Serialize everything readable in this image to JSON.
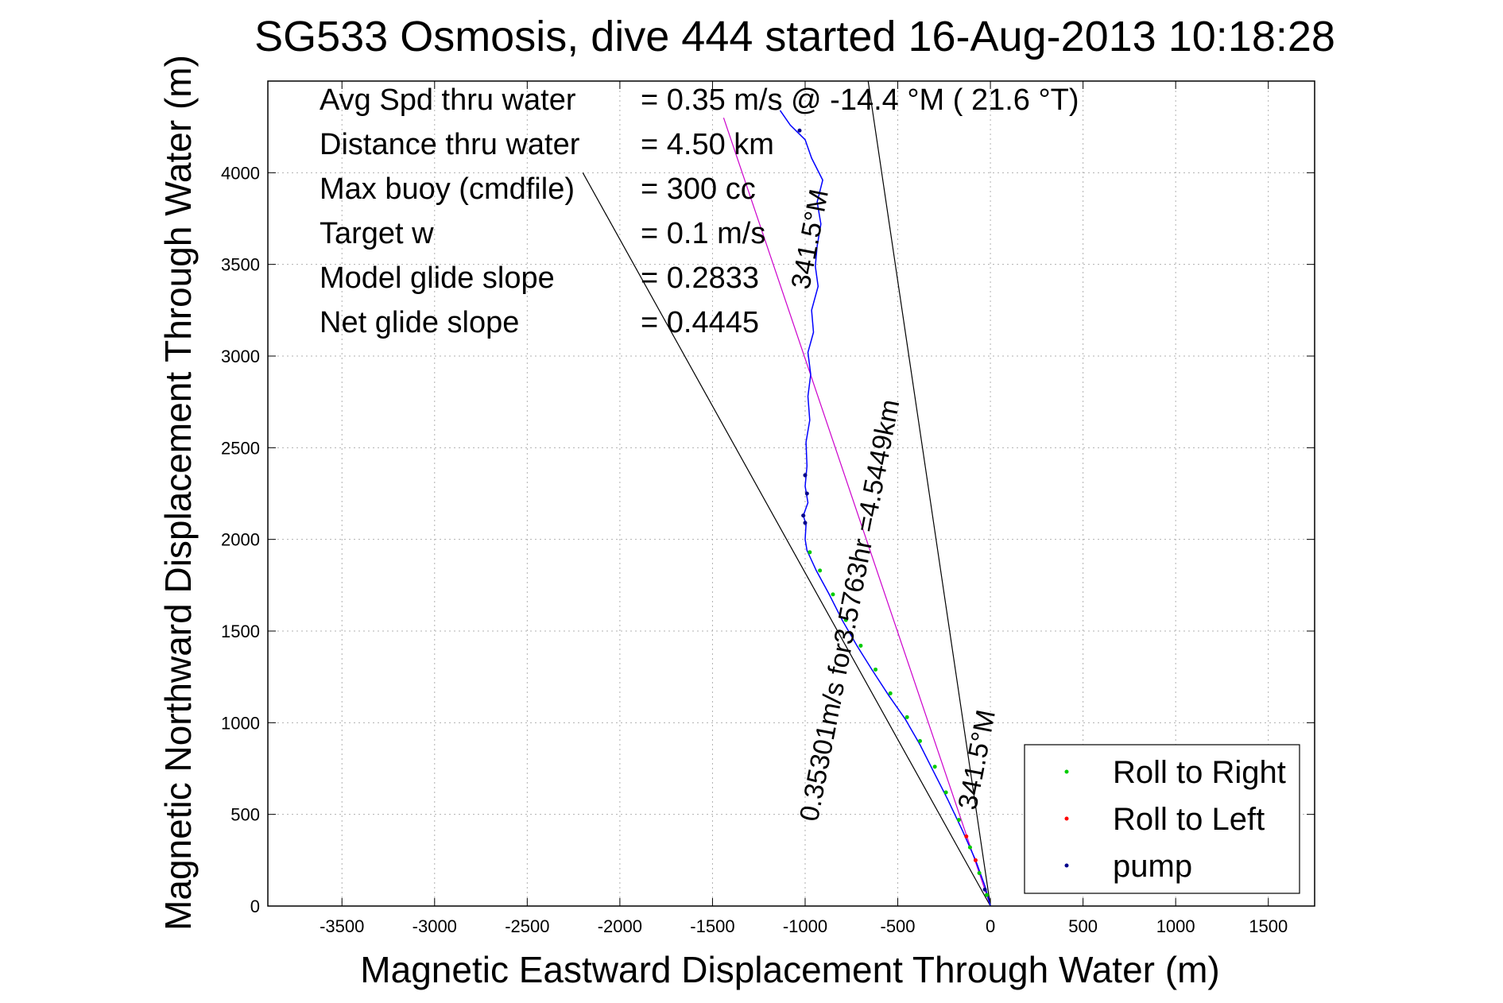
{
  "chart_data": {
    "type": "line",
    "title": "SG533 Osmosis, dive 444 started 16-Aug-2013 10:18:28",
    "xlabel": "Magnetic Eastward Displacement Through Water (m)",
    "ylabel": "Magnetic Northward Displacement Through Water (m)",
    "xlim": [
      -3900,
      1750
    ],
    "ylim": [
      0,
      4500
    ],
    "xticks": [
      -3500,
      -3000,
      -2500,
      -2000,
      -1500,
      -1000,
      -500,
      0,
      500,
      1000,
      1500
    ],
    "yticks": [
      0,
      500,
      1000,
      1500,
      2000,
      2500,
      3000,
      3500,
      4000
    ],
    "grid": true,
    "legend_position": "bottom-right",
    "stats": [
      {
        "label": "Avg Spd thru water",
        "value": "=  0.35 m/s @ -14.4 °M ( 21.6 °T)"
      },
      {
        "label": "Distance thru water",
        "value": "=  4.50 km"
      },
      {
        "label": "Max buoy (cmdfile)",
        "value": "= 300 cc"
      },
      {
        "label": "Target w",
        "value": "= 0.1 m/s"
      },
      {
        "label": "Model glide slope",
        "value": "= 0.2833"
      },
      {
        "label": "Net glide slope",
        "value": "= 0.4445"
      }
    ],
    "path_labels": {
      "along_track": "0.35301m/s for3.5763hr =4.5449km",
      "heading_low": "341.5°M",
      "heading_high": "341.5°M"
    },
    "series": [
      {
        "name": "Roll to Right",
        "marker": "dot",
        "color": "#00cc00",
        "points": [
          [
            -20,
            60
          ],
          [
            -60,
            180
          ],
          [
            -110,
            320
          ],
          [
            -170,
            470
          ],
          [
            -240,
            620
          ],
          [
            -300,
            760
          ],
          [
            -380,
            900
          ],
          [
            -450,
            1030
          ],
          [
            -540,
            1160
          ],
          [
            -620,
            1290
          ],
          [
            -700,
            1420
          ],
          [
            -780,
            1560
          ],
          [
            -850,
            1700
          ],
          [
            -920,
            1830
          ],
          [
            -975,
            1930
          ]
        ]
      },
      {
        "name": "Roll to Left",
        "marker": "dot",
        "color": "#ff0000",
        "points": [
          [
            -80,
            250
          ],
          [
            -130,
            380
          ]
        ]
      },
      {
        "name": "pump",
        "marker": "dot",
        "color": "#00008b",
        "points": [
          [
            -30,
            90
          ],
          [
            -1000,
            2090
          ],
          [
            -1010,
            2130
          ],
          [
            -990,
            2250
          ],
          [
            -1000,
            2350
          ],
          [
            -1030,
            4230
          ]
        ]
      }
    ],
    "track": {
      "color": "#0000ff",
      "points": [
        [
          0,
          0
        ],
        [
          -30,
          110
        ],
        [
          -80,
          250
        ],
        [
          -150,
          410
        ],
        [
          -230,
          580
        ],
        [
          -310,
          740
        ],
        [
          -380,
          880
        ],
        [
          -460,
          1020
        ],
        [
          -550,
          1150
        ],
        [
          -640,
          1290
        ],
        [
          -720,
          1420
        ],
        [
          -800,
          1560
        ],
        [
          -870,
          1700
        ],
        [
          -940,
          1830
        ],
        [
          -990,
          1940
        ],
        [
          -1000,
          2000
        ],
        [
          -995,
          2080
        ],
        [
          -1010,
          2130
        ],
        [
          -985,
          2200
        ],
        [
          -1000,
          2290
        ],
        [
          -990,
          2400
        ],
        [
          -995,
          2530
        ],
        [
          -975,
          2650
        ],
        [
          -985,
          2780
        ],
        [
          -970,
          2900
        ],
        [
          -985,
          3020
        ],
        [
          -955,
          3130
        ],
        [
          -965,
          3250
        ],
        [
          -930,
          3380
        ],
        [
          -945,
          3490
        ],
        [
          -935,
          3600
        ],
        [
          -915,
          3720
        ],
        [
          -935,
          3840
        ],
        [
          -905,
          3960
        ],
        [
          -965,
          4080
        ],
        [
          -1000,
          4180
        ],
        [
          -1080,
          4260
        ],
        [
          -1135,
          4340
        ]
      ]
    },
    "lines": [
      {
        "name": "model-glide-line",
        "color": "#000000",
        "from": [
          0,
          0
        ],
        "to": [
          -2200,
          4000
        ]
      },
      {
        "name": "heading-line-steep",
        "color": "#000000",
        "from": [
          0,
          0
        ],
        "to": [
          -660,
          4500
        ]
      },
      {
        "name": "heading-line-magenta",
        "color": "#cc00cc",
        "from": [
          0,
          0
        ],
        "to": [
          -1440,
          4300
        ]
      }
    ]
  }
}
